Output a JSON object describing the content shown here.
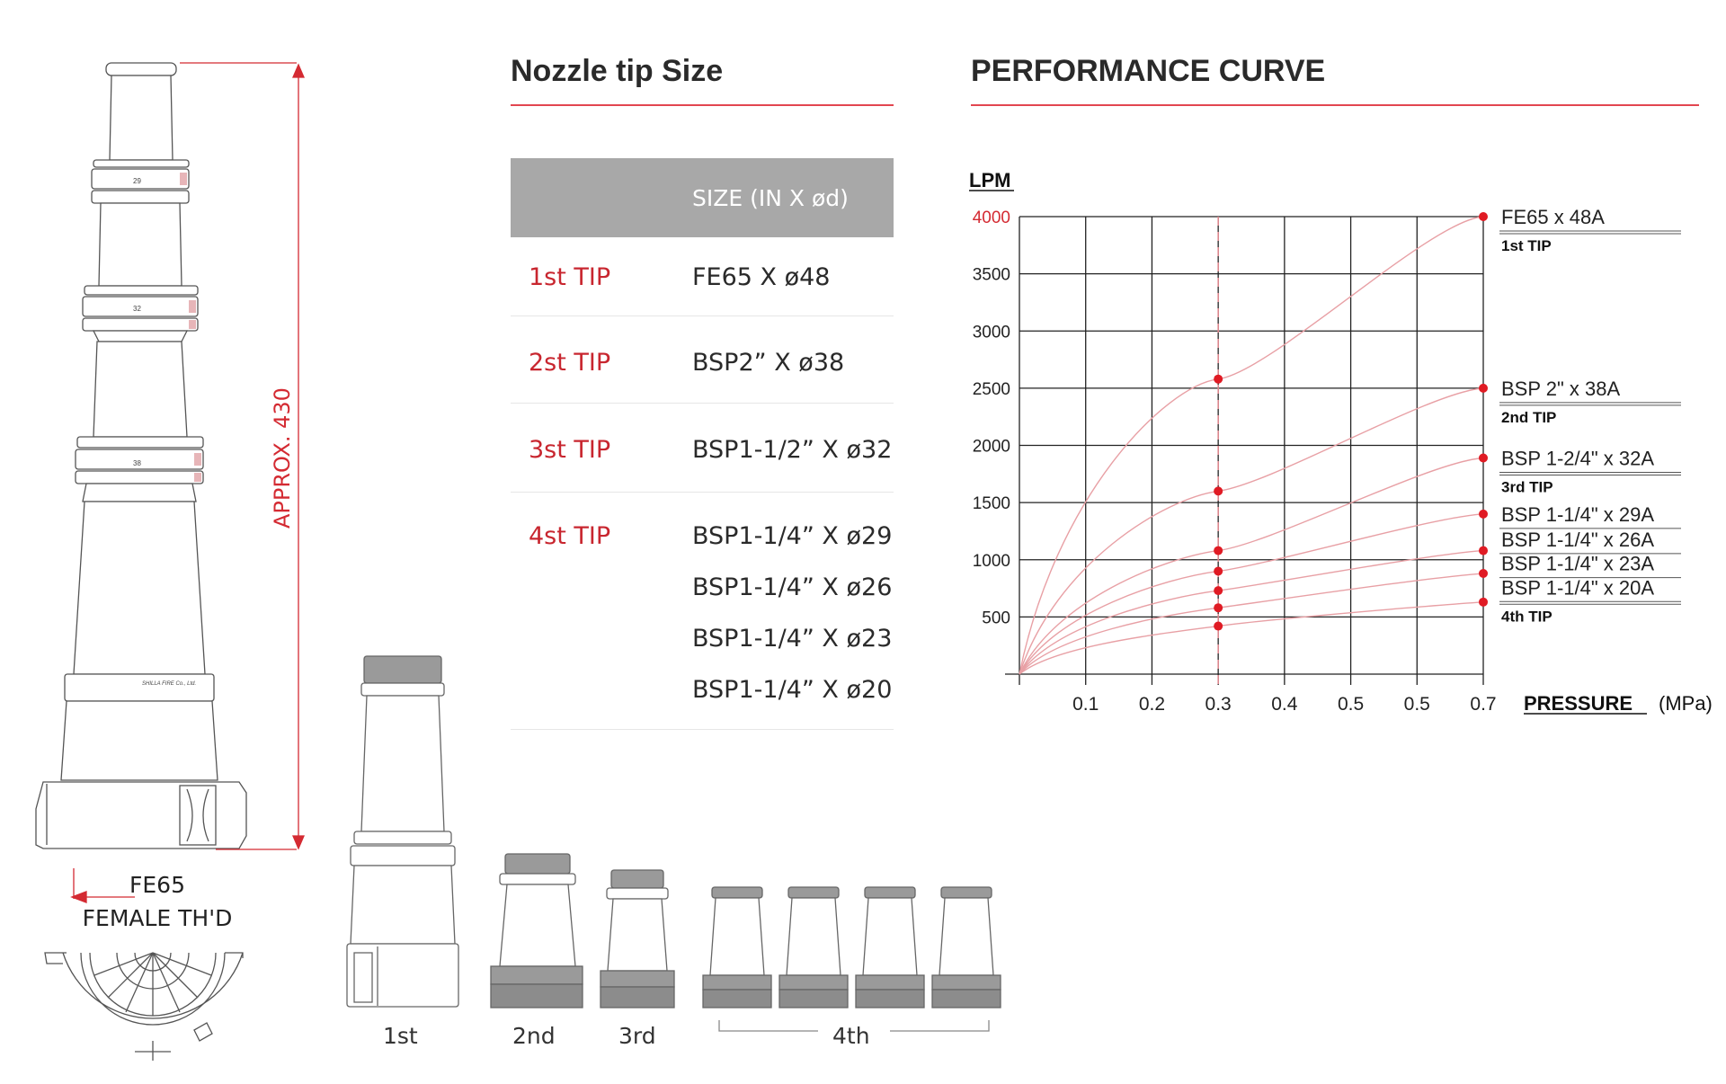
{
  "drawing": {
    "dimension_label": "APPROX. 430",
    "thread_label_line1": "FE65",
    "thread_label_line2": "FEMALE TH'D",
    "ring_marks": [
      "29",
      "32",
      "38"
    ],
    "maker_mark": "SHILLA FIRE Co., Ltd."
  },
  "size_section": {
    "title": "Nozzle tip Size",
    "header": "SIZE (IN X ød)",
    "rows": [
      {
        "tip": "1st TIP",
        "sizes": [
          "FE65 X ø48"
        ]
      },
      {
        "tip": "2st TIP",
        "sizes": [
          "BSP2” X ø38"
        ]
      },
      {
        "tip": "3st TIP",
        "sizes": [
          "BSP1-1/2” X ø32"
        ]
      },
      {
        "tip": "4st TIP",
        "sizes": [
          "BSP1-1/4” X ø29",
          "BSP1-1/4” X ø26",
          "BSP1-1/4” X ø23",
          "BSP1-1/4” X ø20"
        ]
      }
    ]
  },
  "chart_section": {
    "title": "PERFORMANCE CURVE"
  },
  "chart_data": {
    "type": "line",
    "title": "PERFORMANCE CURVE",
    "ylabel": "LPM",
    "xlabel": "PRESSURE",
    "xunit": "(MPa)",
    "x_tick_labels": [
      "0.1",
      "0.2",
      "0.3",
      "0.4",
      "0.5",
      "0.5",
      "0.7"
    ],
    "y_tick_labels": [
      "500",
      "1000",
      "1500",
      "2000",
      "2500",
      "3000",
      "3500",
      "4000"
    ],
    "ylim": [
      0,
      4000
    ],
    "grid": true,
    "reference_line_x": "0.3",
    "series": [
      {
        "name": "FE65 x 48A",
        "values_at_0_3": 2580,
        "values_at_0_7": 4000
      },
      {
        "name": "BSP 2\" x 38A",
        "values_at_0_3": 1600,
        "values_at_0_7": 2500
      },
      {
        "name": "BSP 1-2/4\" x 32A",
        "values_at_0_3": 1080,
        "values_at_0_7": 1890
      },
      {
        "name": "BSP 1-1/4\" x 29A",
        "values_at_0_3": 900,
        "values_at_0_7": 1400
      },
      {
        "name": "BSP 1-1/4\" x 26A",
        "values_at_0_3": 730,
        "values_at_0_7": 1080
      },
      {
        "name": "BSP 1-1/4\" x 23A",
        "values_at_0_3": 580,
        "values_at_0_7": 880
      },
      {
        "name": "BSP 1-1/4\" x 20A",
        "values_at_0_3": 420,
        "values_at_0_7": 630
      }
    ],
    "label_entries": [
      {
        "text": "FE65 x 48A",
        "tip": "1st TIP",
        "y": 4000
      },
      {
        "text": "BSP 2\" x 38A",
        "tip": "2nd TIP",
        "y": 2500
      },
      {
        "text": "BSP 1-2/4\" x 32A",
        "tip": "3rd TIP",
        "y": 1890
      },
      {
        "text": "BSP 1-1/4\" x 29A",
        "tip": "",
        "y": 1400
      },
      {
        "text": "BSP 1-1/4\" x 26A",
        "tip": "",
        "y": 1180
      },
      {
        "text": "BSP 1-1/4\" x 23A",
        "tip": "",
        "y": 970
      },
      {
        "text": "BSP 1-1/4\" x 20A",
        "tip": "4th TIP",
        "y": 760
      }
    ]
  },
  "tips_row": {
    "labels": [
      "1st",
      "2nd",
      "3rd",
      "4th"
    ]
  },
  "colors": {
    "accent": "#d42a32",
    "curve": "#e8a0a5",
    "grid": "#222222",
    "table_header": "#a8a8a8"
  }
}
